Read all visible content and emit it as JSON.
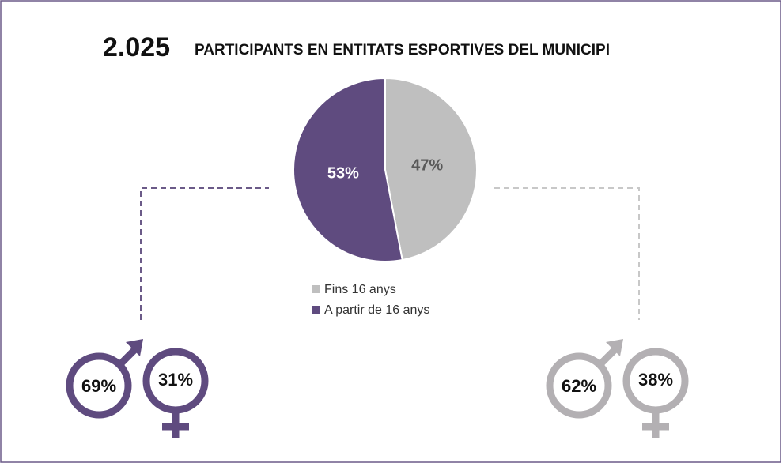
{
  "header": {
    "number": "2.025",
    "title": "PARTICIPANTS EN ENTITATS ESPORTIVES DEL MUNICIPI"
  },
  "chart_data": {
    "type": "pie",
    "categories": [
      "Fins 16 anys",
      "A partir de 16 anys"
    ],
    "values": [
      47,
      53
    ],
    "value_labels": [
      "47%",
      "53%"
    ],
    "colors": [
      "#bfbfbf",
      "#5f4b7f"
    ],
    "label_colors": [
      "#595959",
      "#ffffff"
    ]
  },
  "gender_breakdowns": [
    {
      "color": "#5f4b7f",
      "values": [
        69,
        31
      ],
      "value_labels": [
        "69%",
        "31%"
      ]
    },
    {
      "color": "#b3b0b3",
      "values": [
        62,
        38
      ],
      "value_labels": [
        "62%",
        "38%"
      ]
    }
  ]
}
